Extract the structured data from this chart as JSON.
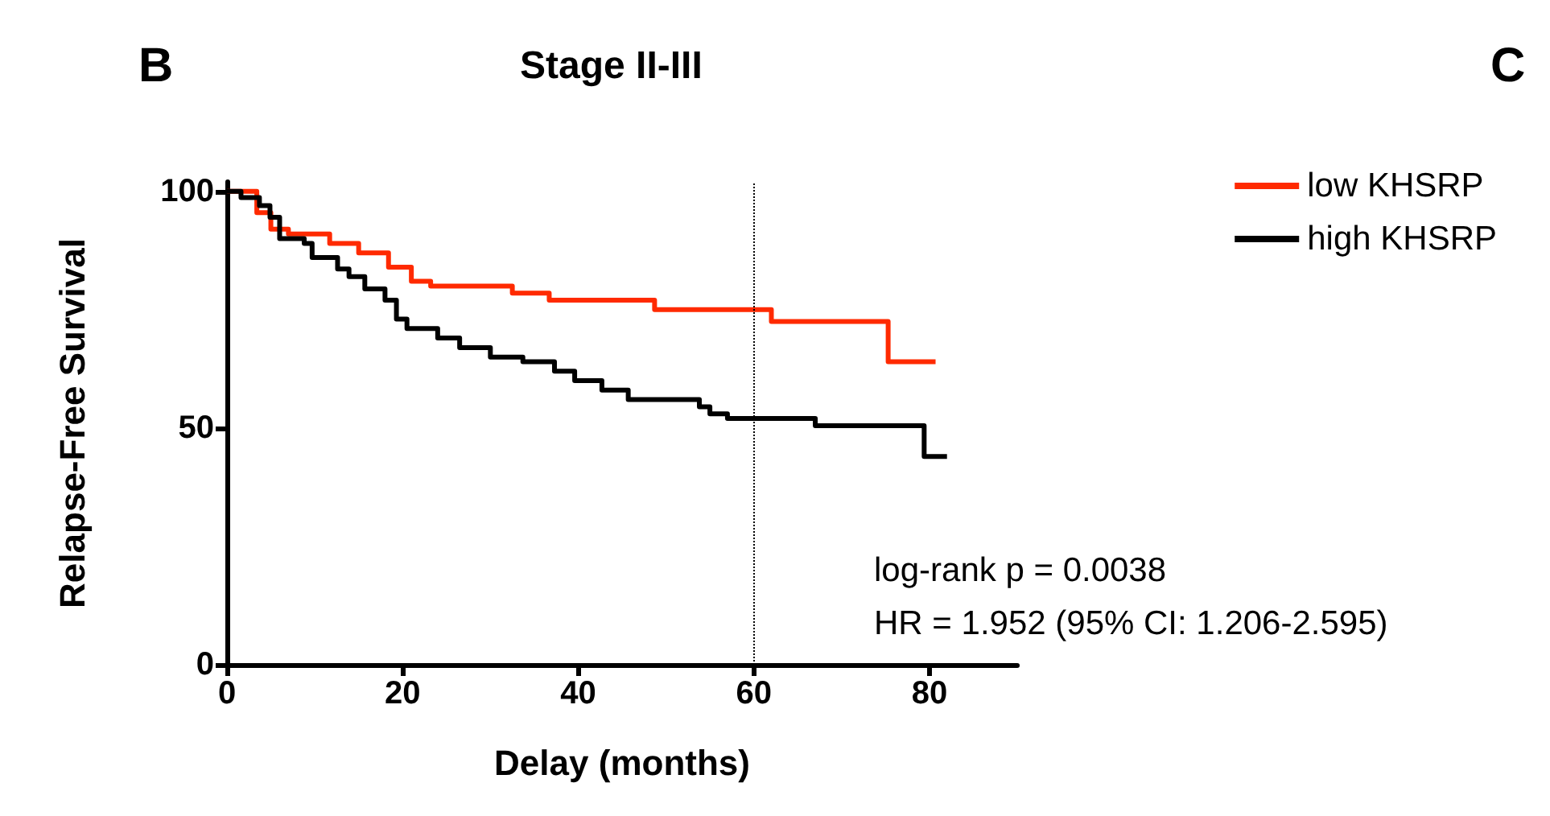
{
  "chart_data": {
    "type": "step",
    "title": "Stage II-III",
    "xlabel": "Delay (months)",
    "ylabel": "Relapse-Free Survival",
    "annotations": [
      "B",
      "C",
      "log-rank p = 0.0038",
      "HR = 1.952 (95% CI: 1.206-2.595)"
    ],
    "series": [
      {
        "name": "low KHSRP",
        "color": "#ff2a00",
        "x": [
          0,
          3.4,
          5,
          7,
          11.7,
          15,
          18.4,
          21,
          23.2,
          32.5,
          36.7,
          48.7,
          62,
          75.3,
          80.7
        ],
        "values": [
          100,
          95.5,
          92,
          91,
          89,
          87,
          84,
          81,
          80,
          78.5,
          77,
          75,
          72.5,
          64,
          64
        ]
      },
      {
        "name": "high KHSRP",
        "color": "#000000",
        "x": [
          0,
          1.6,
          3.7,
          4.9,
          6,
          8.8,
          9.7,
          12.6,
          13.9,
          15.7,
          18,
          19.3,
          20.5,
          24,
          26.5,
          30,
          33.7,
          37.3,
          39.6,
          42.7,
          45.7,
          53.8,
          55,
          57,
          67,
          79.4,
          82
        ],
        "values": [
          100,
          98.7,
          97,
          94.5,
          90,
          89,
          86,
          83.6,
          82,
          79.4,
          77,
          73,
          71,
          69,
          67,
          65,
          64,
          62,
          60,
          58,
          56,
          54.5,
          53,
          52,
          50.5,
          44,
          44
        ]
      }
    ],
    "xlim": [
      0,
      90
    ],
    "xticks": [
      0,
      20,
      40,
      60,
      80
    ],
    "ylim": [
      0,
      102
    ],
    "yticks": [
      0,
      50,
      100
    ],
    "ref_lines": [
      {
        "axis": "x",
        "value": 60,
        "color": "#000000",
        "line_style": "dotted"
      }
    ],
    "grid": false,
    "legend": "top right",
    "marker": "none",
    "line_style": "solid"
  }
}
